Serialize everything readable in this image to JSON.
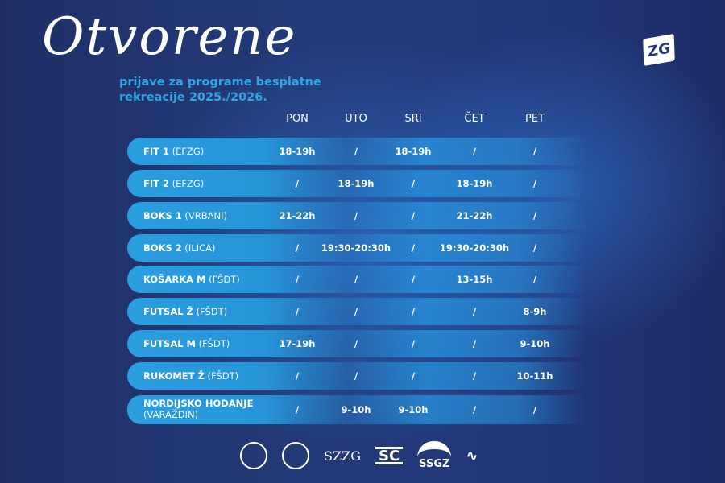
{
  "header": {
    "title": "Otvorene",
    "subtitle_line1": "prijave za programe besplatne",
    "subtitle_line2": "rekreacije 2025./2026.",
    "logo": "ZG"
  },
  "days": [
    "PON",
    "UTO",
    "SRI",
    "ČET",
    "PET"
  ],
  "rows": [
    {
      "name": "FIT 1",
      "location": "(EFZG)",
      "times": [
        "18-19h",
        "/",
        "18-19h",
        "/",
        "/"
      ]
    },
    {
      "name": "FIT 2",
      "location": "(EFZG)",
      "times": [
        "/",
        "18-19h",
        "/",
        "18-19h",
        "/"
      ]
    },
    {
      "name": "BOKS 1",
      "location": "(VRBANI)",
      "times": [
        "21-22h",
        "/",
        "/",
        "21-22h",
        "/"
      ]
    },
    {
      "name": "BOKS 2",
      "location": "(ILICA)",
      "times": [
        "/",
        "19:30-20:30h",
        "/",
        "19:30-20:30h",
        "/"
      ]
    },
    {
      "name": "KOŠARKA M",
      "location": "(FŠDT)",
      "times": [
        "/",
        "/",
        "/",
        "13-15h",
        "/"
      ]
    },
    {
      "name": "FUTSAL Ž",
      "location": "(FŠDT)",
      "times": [
        "/",
        "/",
        "/",
        "/",
        "8-9h"
      ]
    },
    {
      "name": "FUTSAL M",
      "location": "(FŠDT)",
      "times": [
        "17-19h",
        "/",
        "/",
        "/",
        "9-10h"
      ]
    },
    {
      "name": "RUKOMET Ž",
      "location": "(FŠDT)",
      "times": [
        "/",
        "/",
        "/",
        "/",
        "10-11h"
      ]
    },
    {
      "name": "NORDIJSKO HODANJE",
      "location": "(VARAŽDIN)",
      "times": [
        "/",
        "9-10h",
        "9-10h",
        "/",
        "/"
      ]
    }
  ],
  "footer_logos": [
    {
      "icon": "university-seal"
    },
    {
      "icon": "sports-academy-seal"
    },
    {
      "text": "SZZG"
    },
    {
      "text": "SC"
    },
    {
      "text": "SSGZ"
    },
    {
      "icon": "hass-logo"
    }
  ],
  "colors": {
    "background": "#22377a",
    "accent": "#2fa6e4",
    "row": "#2a9ee0"
  }
}
